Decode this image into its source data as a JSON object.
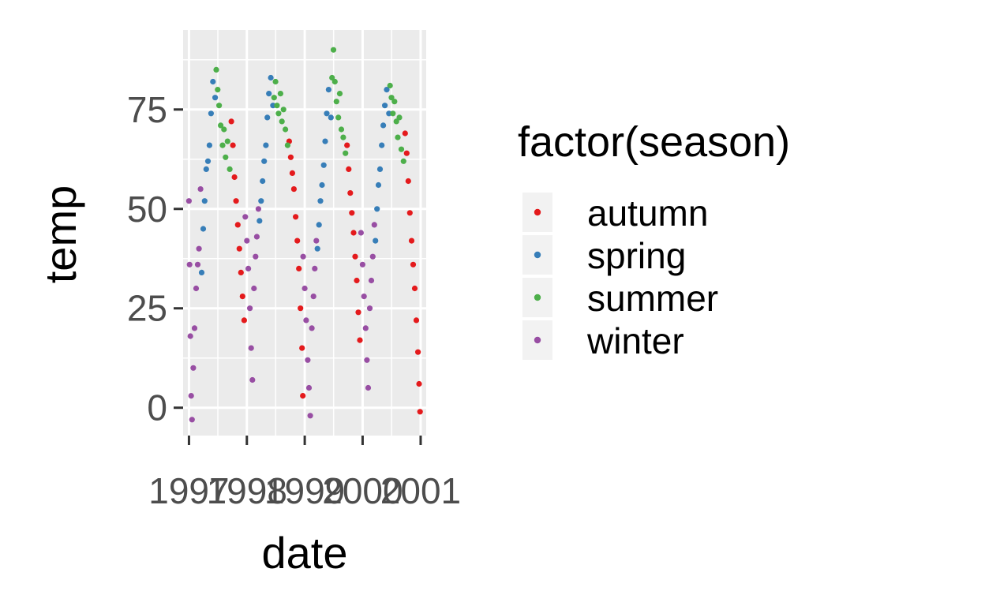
{
  "chart_data": {
    "type": "scatter",
    "xlabel": "date",
    "ylabel": "temp",
    "x_ticks": [
      "1997",
      "1998",
      "1999",
      "2000",
      "2001"
    ],
    "y_ticks": [
      0,
      25,
      50,
      75
    ],
    "xlim": [
      "1996-11-25",
      "2001-02-05"
    ],
    "ylim": [
      -7,
      95
    ],
    "grid": true,
    "legend": {
      "title": "factor(season)",
      "position": "right"
    },
    "series": [
      {
        "name": "autumn",
        "color": "#e41a1c",
        "points": [
          [
            "1997-09-25",
            72
          ],
          [
            "1997-10-05",
            66
          ],
          [
            "1997-10-15",
            58
          ],
          [
            "1997-10-25",
            52
          ],
          [
            "1997-11-05",
            46
          ],
          [
            "1997-11-15",
            40
          ],
          [
            "1997-11-25",
            34
          ],
          [
            "1997-12-05",
            28
          ],
          [
            "1997-12-15",
            22
          ],
          [
            "1998-09-25",
            67
          ],
          [
            "1998-10-05",
            63
          ],
          [
            "1998-10-15",
            59
          ],
          [
            "1998-10-25",
            55
          ],
          [
            "1998-11-05",
            48
          ],
          [
            "1998-11-15",
            42
          ],
          [
            "1998-11-25",
            35
          ],
          [
            "1998-12-05",
            25
          ],
          [
            "1998-12-15",
            15
          ],
          [
            "1998-12-20",
            3
          ],
          [
            "1999-09-25",
            66
          ],
          [
            "1999-10-05",
            60
          ],
          [
            "1999-10-15",
            54
          ],
          [
            "1999-10-25",
            49
          ],
          [
            "1999-11-05",
            44
          ],
          [
            "1999-11-15",
            38
          ],
          [
            "1999-11-25",
            32
          ],
          [
            "1999-12-05",
            24
          ],
          [
            "1999-12-15",
            17
          ],
          [
            "2000-09-25",
            69
          ],
          [
            "2000-10-05",
            64
          ],
          [
            "2000-10-15",
            57
          ],
          [
            "2000-10-25",
            49
          ],
          [
            "2000-11-05",
            42
          ],
          [
            "2000-11-15",
            36
          ],
          [
            "2000-11-25",
            30
          ],
          [
            "2000-12-05",
            22
          ],
          [
            "2000-12-15",
            14
          ],
          [
            "2000-12-22",
            6
          ],
          [
            "2000-12-28",
            -1
          ]
        ]
      },
      {
        "name": "spring",
        "color": "#377eb8",
        "points": [
          [
            "1997-03-22",
            34
          ],
          [
            "1997-04-01",
            45
          ],
          [
            "1997-04-10",
            52
          ],
          [
            "1997-04-20",
            60
          ],
          [
            "1997-05-01",
            62
          ],
          [
            "1997-05-10",
            66
          ],
          [
            "1997-05-20",
            74
          ],
          [
            "1997-06-01",
            82
          ],
          [
            "1997-06-15",
            78
          ],
          [
            "1998-03-22",
            47
          ],
          [
            "1998-04-01",
            52
          ],
          [
            "1998-04-10",
            57
          ],
          [
            "1998-04-20",
            62
          ],
          [
            "1998-05-01",
            66
          ],
          [
            "1998-05-10",
            73
          ],
          [
            "1998-05-20",
            79
          ],
          [
            "1998-06-01",
            83
          ],
          [
            "1998-06-15",
            76
          ],
          [
            "1999-03-22",
            40
          ],
          [
            "1999-04-01",
            46
          ],
          [
            "1999-04-10",
            52
          ],
          [
            "1999-04-20",
            56
          ],
          [
            "1999-05-01",
            61
          ],
          [
            "1999-05-10",
            67
          ],
          [
            "1999-05-20",
            74
          ],
          [
            "1999-06-01",
            80
          ],
          [
            "1999-06-15",
            73
          ],
          [
            "2000-03-22",
            42
          ],
          [
            "2000-04-01",
            50
          ],
          [
            "2000-04-10",
            56
          ],
          [
            "2000-04-20",
            60
          ],
          [
            "2000-05-01",
            66
          ],
          [
            "2000-05-10",
            71
          ],
          [
            "2000-05-20",
            76
          ],
          [
            "2000-06-01",
            80
          ],
          [
            "2000-06-15",
            74
          ]
        ]
      },
      {
        "name": "summer",
        "color": "#4daf4a",
        "points": [
          [
            "1997-06-22",
            85
          ],
          [
            "1997-07-01",
            80
          ],
          [
            "1997-07-10",
            76
          ],
          [
            "1997-07-20",
            71
          ],
          [
            "1997-08-01",
            66
          ],
          [
            "1997-08-10",
            70
          ],
          [
            "1997-08-20",
            63
          ],
          [
            "1997-09-01",
            67
          ],
          [
            "1997-09-15",
            60
          ],
          [
            "1998-06-22",
            78
          ],
          [
            "1998-07-01",
            82
          ],
          [
            "1998-07-10",
            76
          ],
          [
            "1998-07-20",
            74
          ],
          [
            "1998-08-01",
            79
          ],
          [
            "1998-08-10",
            72
          ],
          [
            "1998-08-20",
            75
          ],
          [
            "1998-09-01",
            70
          ],
          [
            "1998-09-15",
            66
          ],
          [
            "1999-06-22",
            83
          ],
          [
            "1999-07-01",
            90
          ],
          [
            "1999-07-10",
            82
          ],
          [
            "1999-07-20",
            77
          ],
          [
            "1999-08-01",
            73
          ],
          [
            "1999-08-10",
            79
          ],
          [
            "1999-08-20",
            70
          ],
          [
            "1999-09-01",
            68
          ],
          [
            "1999-09-15",
            64
          ],
          [
            "2000-06-22",
            81
          ],
          [
            "2000-07-01",
            78
          ],
          [
            "2000-07-10",
            74
          ],
          [
            "2000-07-20",
            77
          ],
          [
            "2000-08-01",
            72
          ],
          [
            "2000-08-10",
            68
          ],
          [
            "2000-08-20",
            73
          ],
          [
            "2000-09-01",
            65
          ],
          [
            "2000-09-15",
            62
          ]
        ]
      },
      {
        "name": "winter",
        "color": "#984ea3",
        "points": [
          [
            "1997-01-01",
            52
          ],
          [
            "1997-01-05",
            36
          ],
          [
            "1997-01-10",
            18
          ],
          [
            "1997-01-15",
            3
          ],
          [
            "1997-01-20",
            -3
          ],
          [
            "1997-01-28",
            10
          ],
          [
            "1997-02-05",
            20
          ],
          [
            "1997-02-15",
            30
          ],
          [
            "1997-02-25",
            36
          ],
          [
            "1997-03-05",
            40
          ],
          [
            "1997-03-15",
            55
          ],
          [
            "1997-12-22",
            48
          ],
          [
            "1998-01-01",
            42
          ],
          [
            "1998-01-10",
            35
          ],
          [
            "1998-01-20",
            25
          ],
          [
            "1998-01-28",
            15
          ],
          [
            "1998-02-05",
            7
          ],
          [
            "1998-02-15",
            30
          ],
          [
            "1998-02-25",
            38
          ],
          [
            "1998-03-05",
            43
          ],
          [
            "1998-03-15",
            50
          ],
          [
            "1998-12-22",
            38
          ],
          [
            "1999-01-01",
            30
          ],
          [
            "1999-01-10",
            22
          ],
          [
            "1999-01-20",
            12
          ],
          [
            "1999-01-28",
            5
          ],
          [
            "1999-02-05",
            -2
          ],
          [
            "1999-02-15",
            20
          ],
          [
            "1999-02-25",
            28
          ],
          [
            "1999-03-05",
            35
          ],
          [
            "1999-03-15",
            42
          ],
          [
            "1999-12-22",
            44
          ],
          [
            "2000-01-01",
            36
          ],
          [
            "2000-01-10",
            28
          ],
          [
            "2000-01-20",
            20
          ],
          [
            "2000-01-28",
            12
          ],
          [
            "2000-02-05",
            5
          ],
          [
            "2000-02-15",
            25
          ],
          [
            "2000-02-25",
            32
          ],
          [
            "2000-03-05",
            38
          ],
          [
            "2000-03-15",
            46
          ]
        ]
      }
    ]
  }
}
